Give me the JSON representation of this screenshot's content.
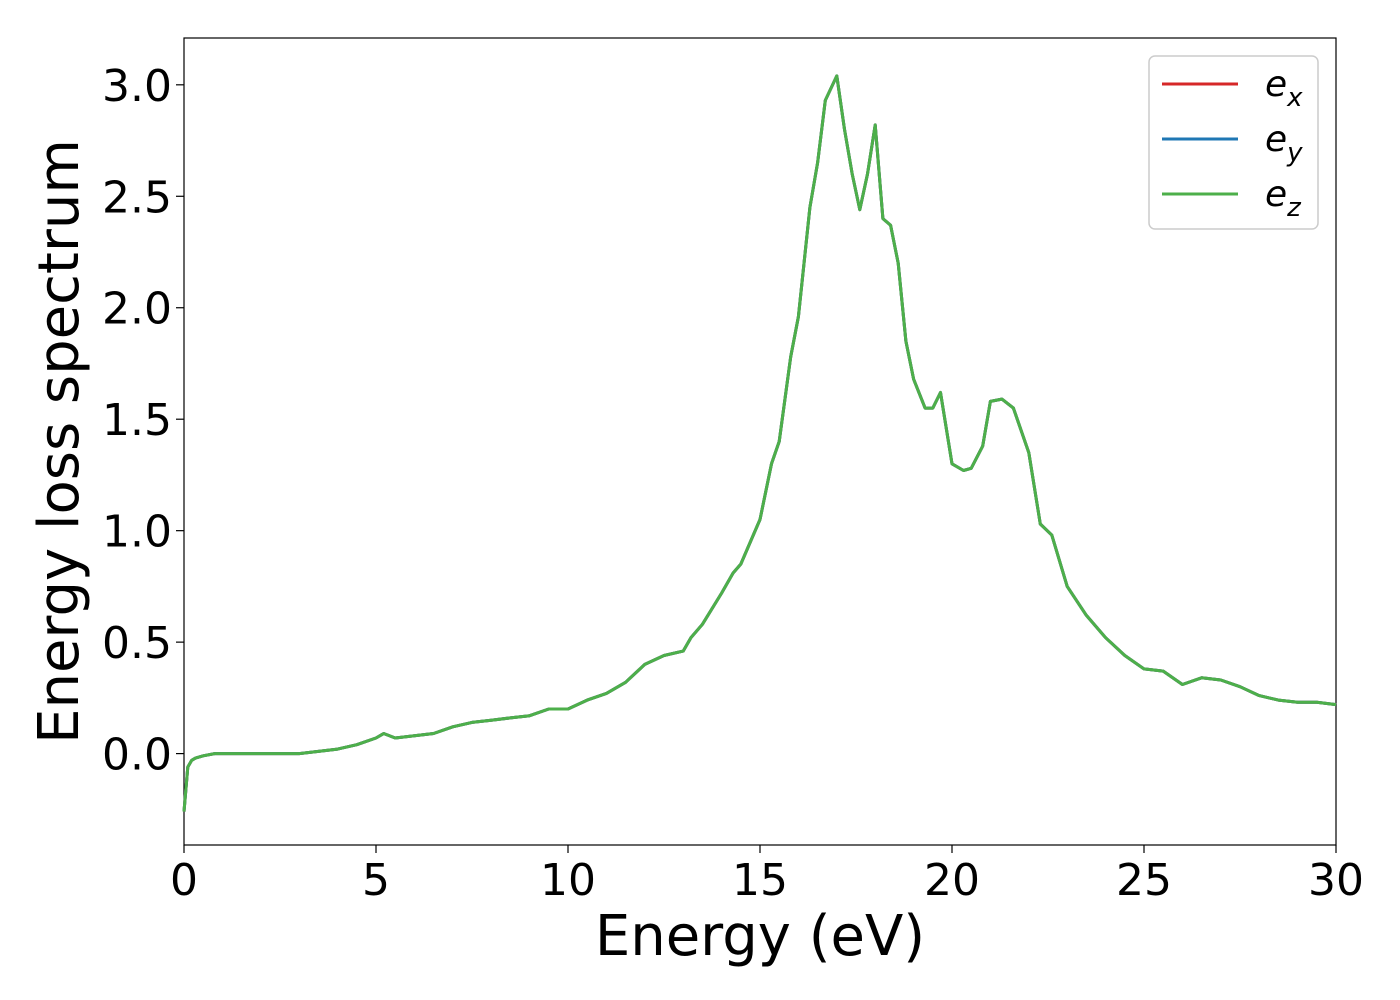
{
  "chart_data": {
    "type": "line",
    "xlabel": "Energy (eV)",
    "ylabel": "Energy loss spectrum",
    "xlim": [
      0,
      30
    ],
    "ylim": [
      -0.41,
      3.21
    ],
    "xticks": [
      0,
      5,
      10,
      15,
      20,
      25,
      30
    ],
    "yticks": [
      0.0,
      0.5,
      1.0,
      1.5,
      2.0,
      2.5,
      3.0
    ],
    "xtick_labels": [
      "0",
      "5",
      "10",
      "15",
      "20",
      "25",
      "30"
    ],
    "ytick_labels": [
      "0.0",
      "0.5",
      "1.0",
      "1.5",
      "2.0",
      "2.5",
      "3.0"
    ],
    "grid": false,
    "legend_position": "top-right",
    "series": [
      {
        "name": "e",
        "subscript": "x",
        "color": "#d62728",
        "ref": 0
      },
      {
        "name": "e",
        "subscript": "y",
        "color": "#1f77b4",
        "ref": 0
      },
      {
        "name": "e",
        "subscript": "z",
        "color": "#4daf4a",
        "ref": 0
      }
    ],
    "x": [
      0.0,
      0.1,
      0.2,
      0.3,
      0.5,
      0.8,
      1.0,
      1.5,
      2.0,
      2.5,
      3.0,
      3.5,
      4.0,
      4.5,
      5.0,
      5.2,
      5.5,
      6.0,
      6.5,
      7.0,
      7.5,
      8.0,
      8.5,
      9.0,
      9.5,
      10.0,
      10.5,
      11.0,
      11.5,
      12.0,
      12.5,
      13.0,
      13.2,
      13.5,
      14.0,
      14.3,
      14.5,
      15.0,
      15.3,
      15.5,
      15.8,
      16.0,
      16.3,
      16.5,
      16.7,
      17.0,
      17.2,
      17.4,
      17.6,
      17.8,
      18.0,
      18.2,
      18.4,
      18.6,
      18.8,
      19.0,
      19.3,
      19.5,
      19.7,
      20.0,
      20.3,
      20.5,
      20.8,
      21.0,
      21.3,
      21.6,
      22.0,
      22.3,
      22.6,
      23.0,
      23.5,
      24.0,
      24.5,
      25.0,
      25.5,
      26.0,
      26.5,
      27.0,
      27.5,
      28.0,
      28.5,
      29.0,
      29.5,
      30.0
    ],
    "y": [
      -0.26,
      -0.06,
      -0.03,
      -0.02,
      -0.01,
      0.0,
      0.0,
      0.0,
      0.0,
      0.0,
      0.0,
      0.01,
      0.02,
      0.04,
      0.07,
      0.09,
      0.07,
      0.08,
      0.09,
      0.12,
      0.14,
      0.15,
      0.16,
      0.17,
      0.2,
      0.2,
      0.24,
      0.27,
      0.32,
      0.4,
      0.44,
      0.46,
      0.52,
      0.58,
      0.72,
      0.81,
      0.85,
      1.05,
      1.3,
      1.4,
      1.78,
      1.96,
      2.45,
      2.65,
      2.93,
      3.04,
      2.8,
      2.6,
      2.44,
      2.6,
      2.82,
      2.4,
      2.37,
      2.2,
      1.85,
      1.68,
      1.55,
      1.55,
      1.62,
      1.3,
      1.27,
      1.28,
      1.38,
      1.58,
      1.59,
      1.55,
      1.35,
      1.03,
      0.98,
      0.75,
      0.62,
      0.52,
      0.44,
      0.38,
      0.37,
      0.31,
      0.34,
      0.33,
      0.3,
      0.26,
      0.24,
      0.23,
      0.23,
      0.22
    ]
  }
}
